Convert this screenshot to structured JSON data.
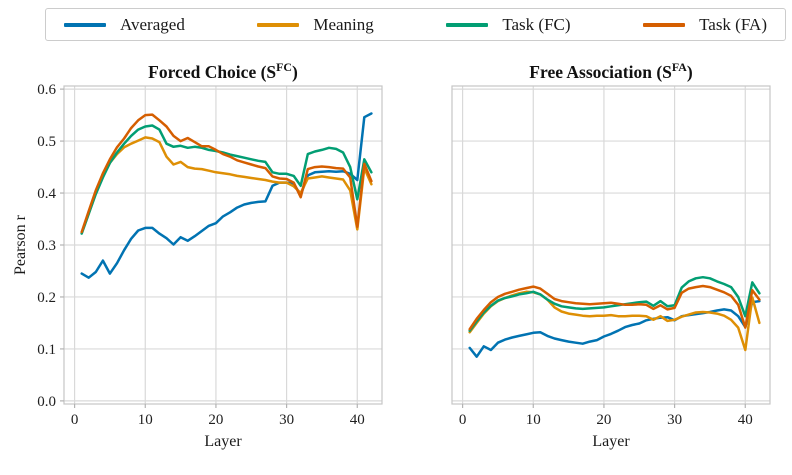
{
  "legend": {
    "items": [
      {
        "label": "Averaged",
        "color": "#0173b2"
      },
      {
        "label": "Meaning",
        "color": "#de8f05"
      },
      {
        "label": "Task (FC)",
        "color": "#029e73"
      },
      {
        "label": "Task (FA)",
        "color": "#d55e00"
      }
    ]
  },
  "chart_data": [
    {
      "type": "line",
      "title": {
        "main": "Forced Choice (S",
        "sup": "FC",
        "end": ")"
      },
      "xlabel": "Layer",
      "ylabel": "Pearson r",
      "xlim": [
        0,
        42
      ],
      "ylim": [
        0,
        0.6
      ],
      "grid": true,
      "show_y_tick_labels": true,
      "x_tick_values": [
        0,
        10,
        20,
        30,
        40
      ],
      "x_tick_labels": [
        "0",
        "10",
        "20",
        "30",
        "40"
      ],
      "y_tick_values": [
        0,
        0.1,
        0.2,
        0.3,
        0.4,
        0.5,
        0.6
      ],
      "y_tick_labels": [
        "0.0",
        "0.1",
        "0.2",
        "0.3",
        "0.4",
        "0.5",
        "0.6"
      ],
      "x": [
        1,
        2,
        3,
        4,
        5,
        6,
        7,
        8,
        9,
        10,
        11,
        12,
        13,
        14,
        15,
        16,
        17,
        18,
        19,
        20,
        21,
        22,
        23,
        24,
        25,
        26,
        27,
        28,
        29,
        30,
        31,
        32,
        33,
        34,
        35,
        36,
        37,
        38,
        39,
        40,
        41,
        42
      ],
      "series": [
        {
          "name": "Averaged",
          "color": "#0173b2",
          "values": [
            0.245,
            0.237,
            0.248,
            0.27,
            0.245,
            0.265,
            0.29,
            0.312,
            0.328,
            0.333,
            0.333,
            0.322,
            0.313,
            0.301,
            0.315,
            0.308,
            0.317,
            0.327,
            0.337,
            0.342,
            0.355,
            0.363,
            0.372,
            0.378,
            0.381,
            0.383,
            0.384,
            0.414,
            0.42,
            0.42,
            0.418,
            0.396,
            0.434,
            0.44,
            0.441,
            0.442,
            0.441,
            0.442,
            0.437,
            0.425,
            0.546,
            0.553
          ]
        },
        {
          "name": "Meaning",
          "color": "#de8f05",
          "values": [
            0.323,
            0.36,
            0.4,
            0.432,
            0.458,
            0.475,
            0.488,
            0.495,
            0.501,
            0.507,
            0.505,
            0.498,
            0.47,
            0.455,
            0.46,
            0.45,
            0.447,
            0.446,
            0.443,
            0.44,
            0.438,
            0.436,
            0.433,
            0.431,
            0.429,
            0.427,
            0.425,
            0.422,
            0.42,
            0.42,
            0.413,
            0.4,
            0.428,
            0.43,
            0.432,
            0.43,
            0.428,
            0.426,
            0.405,
            0.33,
            0.448,
            0.417
          ]
        },
        {
          "name": "Task (FC)",
          "color": "#029e73",
          "values": [
            0.322,
            0.36,
            0.398,
            0.43,
            0.458,
            0.478,
            0.495,
            0.51,
            0.522,
            0.528,
            0.53,
            0.522,
            0.495,
            0.489,
            0.491,
            0.487,
            0.489,
            0.487,
            0.483,
            0.481,
            0.478,
            0.474,
            0.471,
            0.468,
            0.465,
            0.462,
            0.46,
            0.44,
            0.437,
            0.437,
            0.433,
            0.414,
            0.475,
            0.48,
            0.483,
            0.487,
            0.485,
            0.478,
            0.45,
            0.388,
            0.465,
            0.44
          ]
        },
        {
          "name": "Task (FA)",
          "color": "#d55e00",
          "values": [
            0.325,
            0.365,
            0.405,
            0.438,
            0.465,
            0.488,
            0.505,
            0.525,
            0.54,
            0.55,
            0.551,
            0.54,
            0.528,
            0.51,
            0.5,
            0.506,
            0.498,
            0.49,
            0.49,
            0.483,
            0.475,
            0.47,
            0.463,
            0.459,
            0.455,
            0.451,
            0.448,
            0.432,
            0.428,
            0.427,
            0.42,
            0.392,
            0.446,
            0.45,
            0.451,
            0.45,
            0.448,
            0.447,
            0.43,
            0.335,
            0.456,
            0.423
          ]
        }
      ]
    },
    {
      "type": "line",
      "title": {
        "main": "Free Association (S",
        "sup": "FA",
        "end": ")"
      },
      "xlabel": "Layer",
      "ylabel": "Pearson r",
      "xlim": [
        0,
        42
      ],
      "ylim": [
        0,
        0.6
      ],
      "grid": true,
      "show_y_tick_labels": false,
      "x_tick_values": [
        0,
        10,
        20,
        30,
        40
      ],
      "x_tick_labels": [
        "0",
        "10",
        "20",
        "30",
        "40"
      ],
      "y_tick_values": [
        0,
        0.1,
        0.2,
        0.3,
        0.4,
        0.5,
        0.6
      ],
      "y_tick_labels": [
        "0.0",
        "0.1",
        "0.2",
        "0.3",
        "0.4",
        "0.5",
        "0.6"
      ],
      "x": [
        1,
        2,
        3,
        4,
        5,
        6,
        7,
        8,
        9,
        10,
        11,
        12,
        13,
        14,
        15,
        16,
        17,
        18,
        19,
        20,
        21,
        22,
        23,
        24,
        25,
        26,
        27,
        28,
        29,
        30,
        31,
        32,
        33,
        34,
        35,
        36,
        37,
        38,
        39,
        40,
        41,
        42
      ],
      "series": [
        {
          "name": "Averaged",
          "color": "#0173b2",
          "values": [
            0.102,
            0.085,
            0.105,
            0.098,
            0.112,
            0.118,
            0.122,
            0.125,
            0.128,
            0.131,
            0.132,
            0.125,
            0.12,
            0.117,
            0.114,
            0.112,
            0.11,
            0.114,
            0.117,
            0.124,
            0.129,
            0.135,
            0.142,
            0.146,
            0.149,
            0.155,
            0.158,
            0.16,
            0.161,
            0.155,
            0.163,
            0.165,
            0.167,
            0.169,
            0.171,
            0.174,
            0.176,
            0.174,
            0.163,
            0.142,
            0.19,
            0.192
          ]
        },
        {
          "name": "Meaning",
          "color": "#de8f05",
          "values": [
            0.132,
            0.15,
            0.168,
            0.182,
            0.192,
            0.198,
            0.203,
            0.207,
            0.21,
            0.209,
            0.205,
            0.195,
            0.18,
            0.172,
            0.168,
            0.166,
            0.164,
            0.163,
            0.164,
            0.164,
            0.165,
            0.163,
            0.163,
            0.164,
            0.164,
            0.163,
            0.156,
            0.163,
            0.154,
            0.156,
            0.162,
            0.166,
            0.17,
            0.171,
            0.17,
            0.168,
            0.164,
            0.156,
            0.141,
            0.098,
            0.199,
            0.15
          ]
        },
        {
          "name": "Task (FC)",
          "color": "#029e73",
          "values": [
            0.135,
            0.153,
            0.17,
            0.183,
            0.193,
            0.198,
            0.201,
            0.205,
            0.207,
            0.21,
            0.205,
            0.195,
            0.187,
            0.182,
            0.18,
            0.178,
            0.177,
            0.178,
            0.179,
            0.18,
            0.182,
            0.184,
            0.186,
            0.188,
            0.19,
            0.191,
            0.183,
            0.192,
            0.182,
            0.184,
            0.218,
            0.23,
            0.236,
            0.238,
            0.236,
            0.23,
            0.225,
            0.219,
            0.2,
            0.163,
            0.228,
            0.207
          ]
        },
        {
          "name": "Task (FA)",
          "color": "#d55e00",
          "values": [
            0.138,
            0.158,
            0.175,
            0.19,
            0.2,
            0.206,
            0.21,
            0.214,
            0.217,
            0.22,
            0.216,
            0.206,
            0.196,
            0.192,
            0.19,
            0.188,
            0.187,
            0.186,
            0.187,
            0.188,
            0.189,
            0.187,
            0.185,
            0.185,
            0.186,
            0.185,
            0.177,
            0.184,
            0.176,
            0.179,
            0.208,
            0.216,
            0.219,
            0.221,
            0.219,
            0.214,
            0.209,
            0.202,
            0.185,
            0.141,
            0.213,
            0.195
          ]
        }
      ]
    }
  ]
}
